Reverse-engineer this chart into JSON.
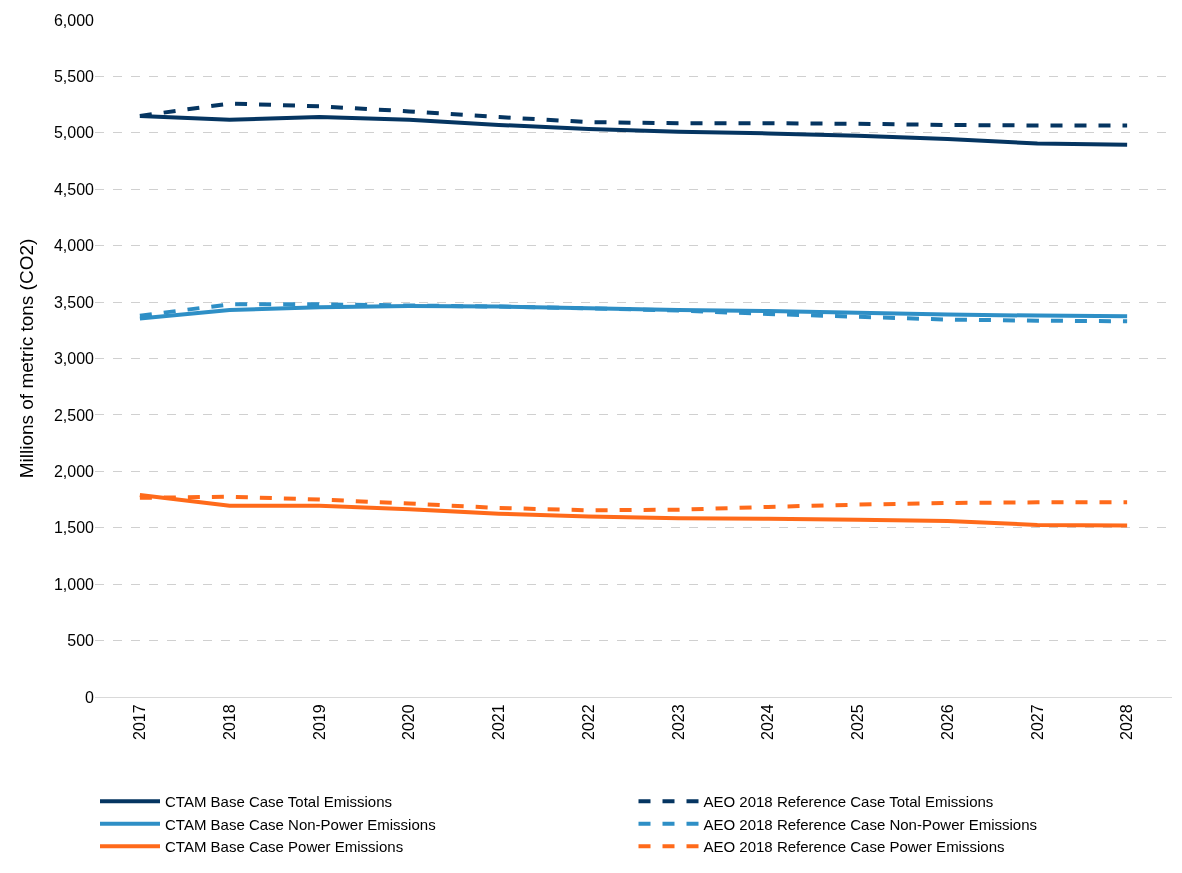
{
  "chart_data": {
    "type": "line",
    "ylabel": "Millions of metric tons (CO2)",
    "categories": [
      "2017",
      "2018",
      "2019",
      "2020",
      "2021",
      "2022",
      "2023",
      "2024",
      "2025",
      "2026",
      "2027",
      "2028"
    ],
    "series": [
      {
        "name": "CTAM Base Case Total Emissions",
        "color": "#053561",
        "line_style": "solid",
        "values": [
          5150,
          5115,
          5140,
          5115,
          5070,
          5035,
          5010,
          4995,
          4975,
          4945,
          4905,
          4895
        ]
      },
      {
        "name": "AEO 2018 Reference Case Total Emissions",
        "color": "#053561",
        "line_style": "dashed",
        "values": [
          5150,
          5260,
          5235,
          5190,
          5140,
          5095,
          5085,
          5085,
          5080,
          5070,
          5065,
          5065
        ]
      },
      {
        "name": "CTAM Base Case Non-Power Emissions",
        "color": "#2e8fc6",
        "line_style": "solid",
        "values": [
          3355,
          3430,
          3455,
          3465,
          3460,
          3445,
          3430,
          3420,
          3405,
          3390,
          3380,
          3375
        ]
      },
      {
        "name": "AEO 2018 Reference Case Non-Power Emissions",
        "color": "#2e8fc6",
        "line_style": "dashed",
        "values": [
          3380,
          3480,
          3480,
          3470,
          3460,
          3445,
          3425,
          3395,
          3370,
          3345,
          3335,
          3330
        ]
      },
      {
        "name": "CTAM Base Case Power Emissions",
        "color": "#ff6a1a",
        "line_style": "solid",
        "values": [
          1790,
          1695,
          1695,
          1665,
          1625,
          1600,
          1585,
          1580,
          1570,
          1560,
          1525,
          1520
        ]
      },
      {
        "name": "AEO 2018 Reference Case Power Emissions",
        "color": "#ff6a1a",
        "line_style": "dashed",
        "values": [
          1765,
          1775,
          1750,
          1715,
          1675,
          1655,
          1660,
          1685,
          1705,
          1720,
          1725,
          1725
        ]
      }
    ],
    "ylim": [
      0,
      6000
    ],
    "yticks": [
      {
        "value": 0,
        "label": "0"
      },
      {
        "value": 500,
        "label": "500"
      },
      {
        "value": 1000,
        "label": "1,000"
      },
      {
        "value": 1500,
        "label": "1,500"
      },
      {
        "value": 2000,
        "label": "2,000"
      },
      {
        "value": 2500,
        "label": "2,500"
      },
      {
        "value": 3000,
        "label": "3,000"
      },
      {
        "value": 3500,
        "label": "3,500"
      },
      {
        "value": 4000,
        "label": "4,000"
      },
      {
        "value": 4500,
        "label": "4,500"
      },
      {
        "value": 5000,
        "label": "5,000"
      },
      {
        "value": 5500,
        "label": "5,500"
      },
      {
        "value": 6000,
        "label": "6,000"
      }
    ],
    "grid": "y",
    "legend": "bottom",
    "marker": "none"
  }
}
